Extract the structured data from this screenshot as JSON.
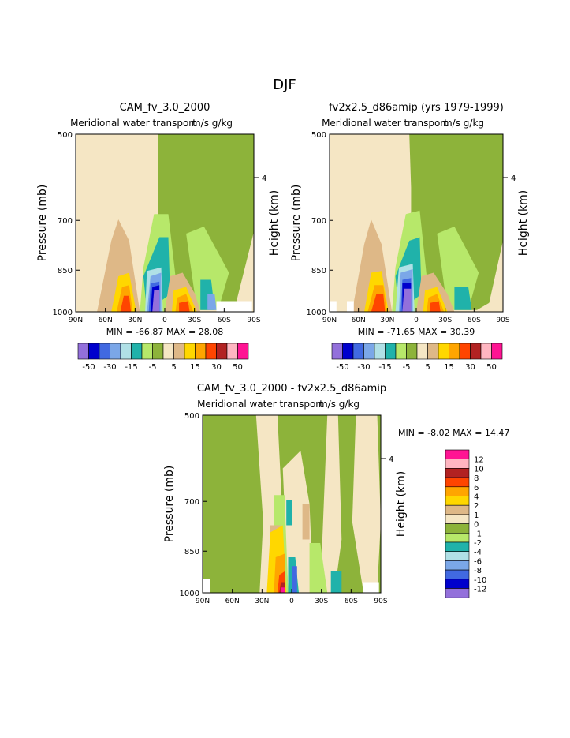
{
  "page": {
    "season": "DJF"
  },
  "chart_data": [
    {
      "type": "heatmap",
      "title": "CAM_fv_3.0_2000",
      "subtitle_left": "Meridional water transport",
      "subtitle_right": "m/s g/kg",
      "xlabel": "",
      "ylabel": "Pressure (mb)",
      "ylabel_right": "Height (km)",
      "x_ticks": [
        "90N",
        "60N",
        "30N",
        "0",
        "30S",
        "60S",
        "90S"
      ],
      "y_ticks": [
        "500",
        "700",
        "850",
        "1000"
      ],
      "y_ticks_right": [
        "4"
      ],
      "ylim": [
        1000,
        500
      ],
      "stats": {
        "min_label": "MIN =",
        "min": "-66.87",
        "max_label": "MAX =",
        "max": "28.08"
      },
      "colorbar": {
        "orientation": "horizontal",
        "tick_labels": [
          "-50",
          "-30",
          "-15",
          "-5",
          "5",
          "15",
          "30",
          "50"
        ],
        "colors": [
          "#9370db",
          "#0000cd",
          "#4169e1",
          "#7ba7e8",
          "#b0e0e6",
          "#20b2aa",
          "#b7e86a",
          "#8db33a",
          "#f5e6c4",
          "#deb887",
          "#ffd700",
          "#ffa500",
          "#ff4500",
          "#b22222",
          "#ffb6c1",
          "#ff1493"
        ]
      }
    },
    {
      "type": "heatmap",
      "title": "fv2x2.5_d86amip (yrs 1979-1999)",
      "subtitle_left": "Meridional water transport",
      "subtitle_right": "m/s g/kg",
      "xlabel": "",
      "ylabel": "Pressure (mb)",
      "ylabel_right": "Height (km)",
      "x_ticks": [
        "90N",
        "60N",
        "30N",
        "0",
        "30S",
        "60S",
        "90S"
      ],
      "y_ticks": [
        "500",
        "700",
        "850",
        "1000"
      ],
      "y_ticks_right": [
        "4"
      ],
      "ylim": [
        1000,
        500
      ],
      "stats": {
        "min_label": "MIN =",
        "min": "-71.65",
        "max_label": "MAX =",
        "max": "30.39"
      },
      "colorbar": {
        "orientation": "horizontal",
        "tick_labels": [
          "-50",
          "-30",
          "-15",
          "-5",
          "5",
          "15",
          "30",
          "50"
        ],
        "colors": [
          "#9370db",
          "#0000cd",
          "#4169e1",
          "#7ba7e8",
          "#b0e0e6",
          "#20b2aa",
          "#b7e86a",
          "#8db33a",
          "#f5e6c4",
          "#deb887",
          "#ffd700",
          "#ffa500",
          "#ff4500",
          "#b22222",
          "#ffb6c1",
          "#ff1493"
        ]
      }
    },
    {
      "type": "heatmap",
      "title": "CAM_fv_3.0_2000 - fv2x2.5_d86amip",
      "subtitle_left": "Meridional water transport",
      "subtitle_right": "m/s g/kg",
      "xlabel": "",
      "ylabel": "Pressure (mb)",
      "ylabel_right": "Height (km)",
      "x_ticks": [
        "90N",
        "60N",
        "30N",
        "0",
        "30S",
        "60S",
        "90S"
      ],
      "y_ticks": [
        "500",
        "700",
        "850",
        "1000"
      ],
      "y_ticks_right": [
        "4"
      ],
      "ylim": [
        1000,
        500
      ],
      "stats": {
        "min_label": "MIN =",
        "min": "-8.02",
        "max_label": "MAX =",
        "max": "14.47"
      },
      "colorbar": {
        "orientation": "vertical",
        "tick_labels": [
          "12",
          "10",
          "8",
          "6",
          "4",
          "2",
          "1",
          "0",
          "-1",
          "-2",
          "-4",
          "-6",
          "-8",
          "-10",
          "-12"
        ],
        "colors": [
          "#ff1493",
          "#ffb6c1",
          "#b22222",
          "#ff4500",
          "#ffa500",
          "#ffd700",
          "#deb887",
          "#f5e6c4",
          "#8db33a",
          "#b7e86a",
          "#20b2aa",
          "#b0e0e6",
          "#7ba7e8",
          "#4169e1",
          "#0000cd",
          "#9370db"
        ]
      }
    }
  ]
}
